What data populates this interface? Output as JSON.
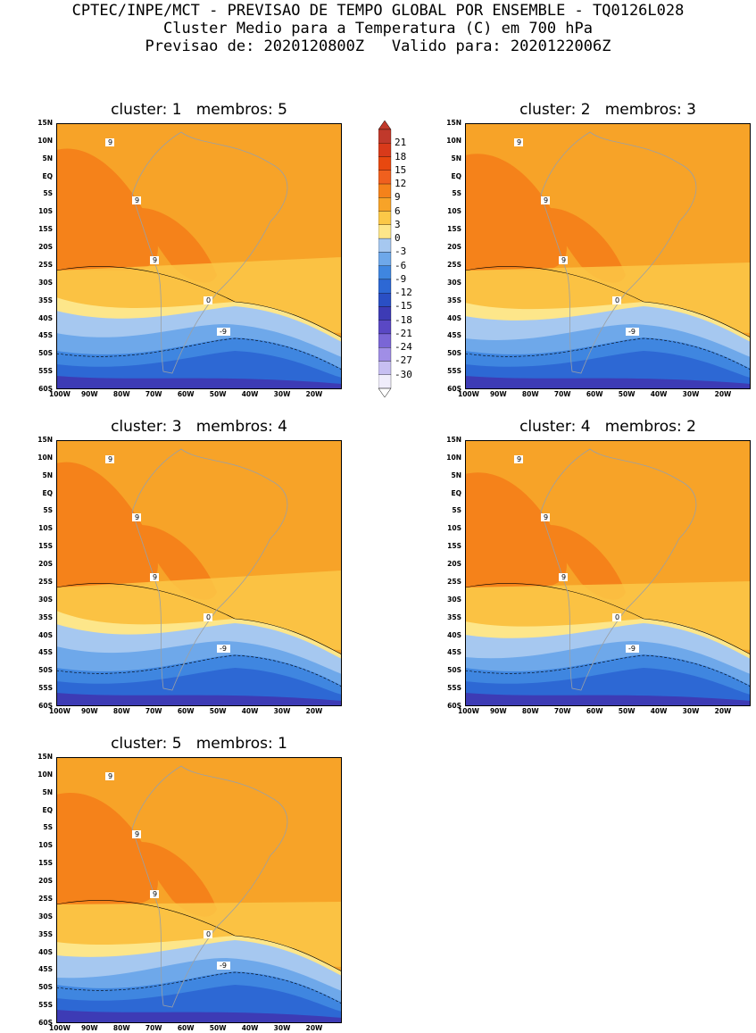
{
  "header": {
    "line1": "CPTEC/INPE/MCT - PREVISAO DE TEMPO GLOBAL POR ENSEMBLE - TQ0126L028",
    "line2": "Cluster Medio para a Temperatura (C) em 700 hPa",
    "line3": "Previsao de: 2020120800Z   Valido para: 2020122006Z"
  },
  "panels": [
    {
      "title": "cluster: 1   membros: 5"
    },
    {
      "title": "cluster: 2   membros: 3"
    },
    {
      "title": "cluster: 3   membros: 4"
    },
    {
      "title": "cluster: 4   membros: 2"
    },
    {
      "title": "cluster: 5   membros: 1"
    }
  ],
  "lat_labels": [
    "15N",
    "10N",
    "5N",
    "EQ",
    "5S",
    "10S",
    "15S",
    "20S",
    "25S",
    "30S",
    "35S",
    "40S",
    "45S",
    "50S",
    "55S",
    "60S"
  ],
  "lon_labels": [
    "100W",
    "90W",
    "80W",
    "70W",
    "60W",
    "50W",
    "40W",
    "30W",
    "20W"
  ],
  "colorbar": {
    "levels": [
      "21",
      "18",
      "15",
      "12",
      "9",
      "6",
      "3",
      "0",
      "-3",
      "-6",
      "-9",
      "-12",
      "-15",
      "-18",
      "-21",
      "-24",
      "-27",
      "-30"
    ],
    "colors": [
      "#c0392b",
      "#d93a1a",
      "#e8480f",
      "#f0601e",
      "#f5821a",
      "#f7a328",
      "#fbc848",
      "#fde68a",
      "#a6c8f0",
      "#6ea8ea",
      "#3f86e0",
      "#2d68d4",
      "#2a4fc4",
      "#3d3bb5",
      "#5a48c4",
      "#7a66d6",
      "#a08ee6",
      "#c7bff2",
      "#f0edfb"
    ]
  },
  "contour_labels": {
    "nine": "9",
    "zero": "0",
    "minus_nine": "-9"
  }
}
